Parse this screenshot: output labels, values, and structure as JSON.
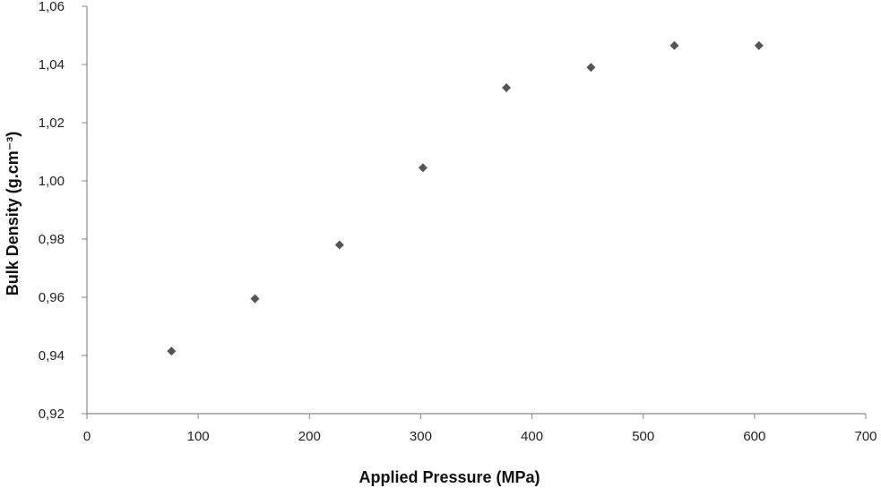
{
  "chart_data": {
    "type": "scatter",
    "title": "",
    "xlabel": "Applied Pressure (MPa)",
    "ylabel": "Bulk Density (g.cm⁻³)",
    "xlim": [
      0,
      700
    ],
    "ylim": [
      0.92,
      1.06
    ],
    "x_ticks": [
      0,
      100,
      200,
      300,
      400,
      500,
      600,
      700
    ],
    "x_tick_labels": [
      "0",
      "100",
      "200",
      "300",
      "400",
      "500",
      "600",
      "700"
    ],
    "y_ticks": [
      0.92,
      0.94,
      0.96,
      0.98,
      1.0,
      1.02,
      1.04,
      1.06
    ],
    "y_tick_labels": [
      "0,92",
      "0,94",
      "0,96",
      "0,98",
      "1,00",
      "1,02",
      "1,04",
      "1,06"
    ],
    "grid": false,
    "legend": "none",
    "marker": "diamond",
    "marker_color": "#555555",
    "axis_color": "#888888",
    "series": [
      {
        "x": [
          76,
          151,
          227,
          302,
          377,
          453,
          528,
          604
        ],
        "y": [
          0.9415,
          0.9595,
          0.978,
          1.0045,
          1.032,
          1.039,
          1.0465,
          1.0465
        ]
      }
    ]
  }
}
